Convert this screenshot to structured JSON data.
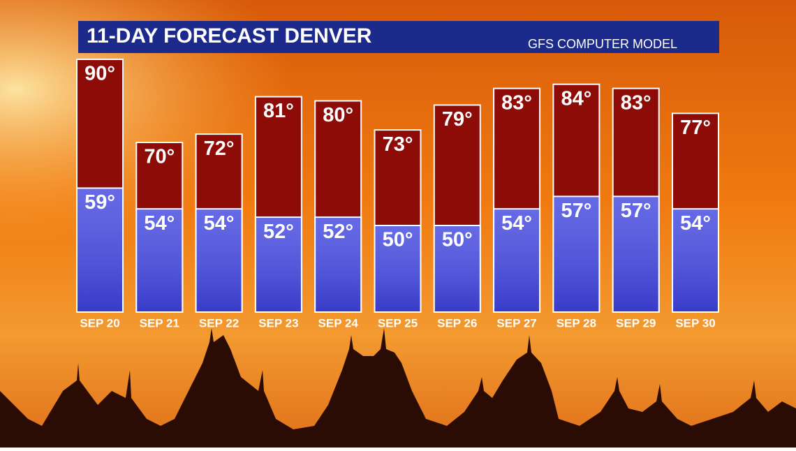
{
  "chart_data": {
    "type": "bar",
    "title": "11-DAY FORECAST DENVER",
    "subtitle": "GFS COMPUTER MODEL",
    "categories": [
      "SEP 20",
      "SEP 21",
      "SEP 22",
      "SEP 23",
      "SEP 24",
      "SEP 25",
      "SEP 26",
      "SEP 27",
      "SEP 28",
      "SEP 29",
      "SEP 30"
    ],
    "series": [
      {
        "color": "#8e0c08",
        "values": [
          90,
          70,
          72,
          81,
          80,
          73,
          79,
          83,
          84,
          83,
          77
        ],
        "value_labels": [
          "90°",
          "70°",
          "72°",
          "81°",
          "80°",
          "73°",
          "79°",
          "83°",
          "84°",
          "83°",
          "77°"
        ]
      },
      {
        "color": "#4a4fe0",
        "values": [
          59,
          54,
          54,
          52,
          52,
          50,
          50,
          54,
          57,
          57,
          54
        ],
        "value_labels": [
          "59°",
          "54°",
          "54°",
          "52°",
          "52°",
          "50°",
          "50°",
          "54°",
          "57°",
          "57°",
          "54°"
        ]
      }
    ]
  }
}
